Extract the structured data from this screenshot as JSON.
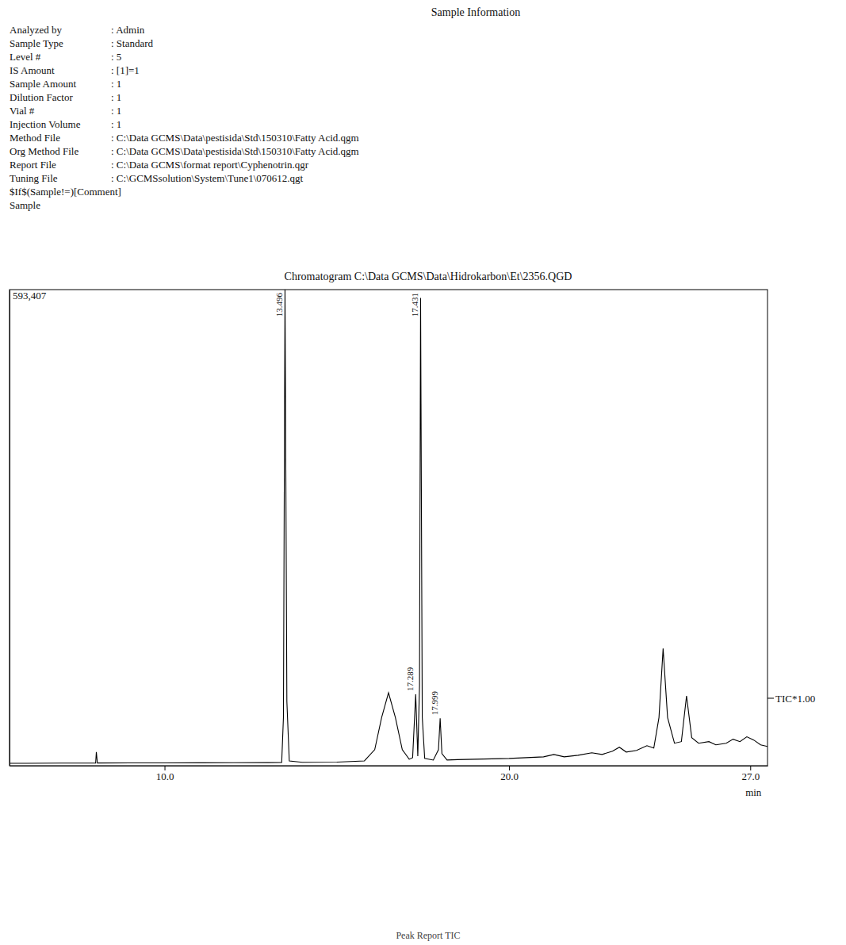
{
  "sample_info": {
    "title": "Sample Information",
    "rows": [
      [
        "Analyzed by",
        ": Admin"
      ],
      [
        "Sample Type",
        ": Standard"
      ],
      [
        "Level #",
        ": 5"
      ],
      [
        "IS Amount",
        ": [1]=1"
      ],
      [
        "Sample Amount",
        ": 1"
      ],
      [
        "Dilution Factor",
        ": 1"
      ],
      [
        "Vial #",
        ": 1"
      ],
      [
        "Injection Volume",
        ": 1"
      ],
      [
        "Method File",
        ": C:\\Data GCMS\\Data\\pestisida\\Std\\150310\\Fatty Acid.qgm"
      ],
      [
        "Org Method File",
        ": C:\\Data GCMS\\Data\\pestisida\\Std\\150310\\Fatty Acid.qgm"
      ],
      [
        "Report File",
        ": C:\\Data GCMS\\format report\\Cyphenotrin.qgr"
      ],
      [
        "Tuning File",
        ": C:\\GCMSsolution\\System\\Tune1\\070612.qgt"
      ]
    ],
    "lines": [
      "$If$(Sample!=)[Comment]",
      "Sample"
    ]
  },
  "footer": "Peak Report TIC",
  "chart_data": {
    "type": "line",
    "title": "Chromatogram C:\\Data GCMS\\Data\\Hidrokarbon\\Et\\2356.QGD",
    "xlabel": "min",
    "xlim": [
      5.5,
      27.5
    ],
    "xticks": [
      {
        "value": 10,
        "label": "10.0"
      },
      {
        "value": 20,
        "label": "20.0"
      },
      {
        "value": 27,
        "label": "27.0"
      }
    ],
    "ylim": [
      0,
      593407
    ],
    "yticks": [
      {
        "value": 593407,
        "label": "593,407"
      }
    ],
    "x": [
      5.5,
      6.0,
      7.0,
      8.0,
      8.02,
      8.05,
      9.0,
      10.0,
      11.0,
      12.0,
      13.0,
      13.4,
      13.45,
      13.496,
      13.55,
      13.62,
      14.0,
      15.0,
      15.8,
      16.1,
      16.3,
      16.5,
      16.7,
      16.9,
      17.1,
      17.2,
      17.289,
      17.35,
      17.4,
      17.431,
      17.48,
      17.55,
      17.8,
      17.95,
      17.999,
      18.05,
      18.2,
      18.5,
      19.0,
      19.5,
      20.0,
      20.5,
      21.0,
      21.3,
      21.6,
      22.0,
      22.4,
      22.7,
      23.0,
      23.2,
      23.4,
      23.7,
      24.0,
      24.2,
      24.35,
      24.47,
      24.6,
      24.8,
      25.0,
      25.15,
      25.3,
      25.5,
      25.8,
      26.0,
      26.3,
      26.5,
      26.7,
      26.9,
      27.1,
      27.3,
      27.5
    ],
    "series": [
      {
        "name": "TIC*1.00",
        "color": "#000000",
        "values": [
          3000,
          3000,
          3200,
          3300,
          17000,
          3300,
          3400,
          3500,
          3600,
          3700,
          3800,
          4000,
          60000,
          593407,
          80000,
          6000,
          4200,
          4500,
          6000,
          20000,
          60000,
          91000,
          60000,
          20000,
          8000,
          10000,
          89000,
          12000,
          100000,
          583000,
          60000,
          9000,
          7000,
          20000,
          59000,
          15000,
          7000,
          7500,
          8000,
          8500,
          9000,
          10000,
          11000,
          14000,
          11000,
          13000,
          16000,
          14000,
          18000,
          23000,
          17000,
          19000,
          25000,
          22000,
          60000,
          146000,
          60000,
          28000,
          30000,
          87000,
          35000,
          28000,
          30000,
          26000,
          28000,
          33000,
          30000,
          36000,
          32000,
          26000,
          24000
        ]
      }
    ],
    "annotations": [
      {
        "x": 13.496,
        "y": 593407,
        "text": "13.496"
      },
      {
        "x": 17.289,
        "y": 89000,
        "text": "17.289"
      },
      {
        "x": 17.431,
        "y": 583000,
        "text": "17.431"
      },
      {
        "x": 17.999,
        "y": 59000,
        "text": "17.999"
      }
    ],
    "grid": false
  }
}
